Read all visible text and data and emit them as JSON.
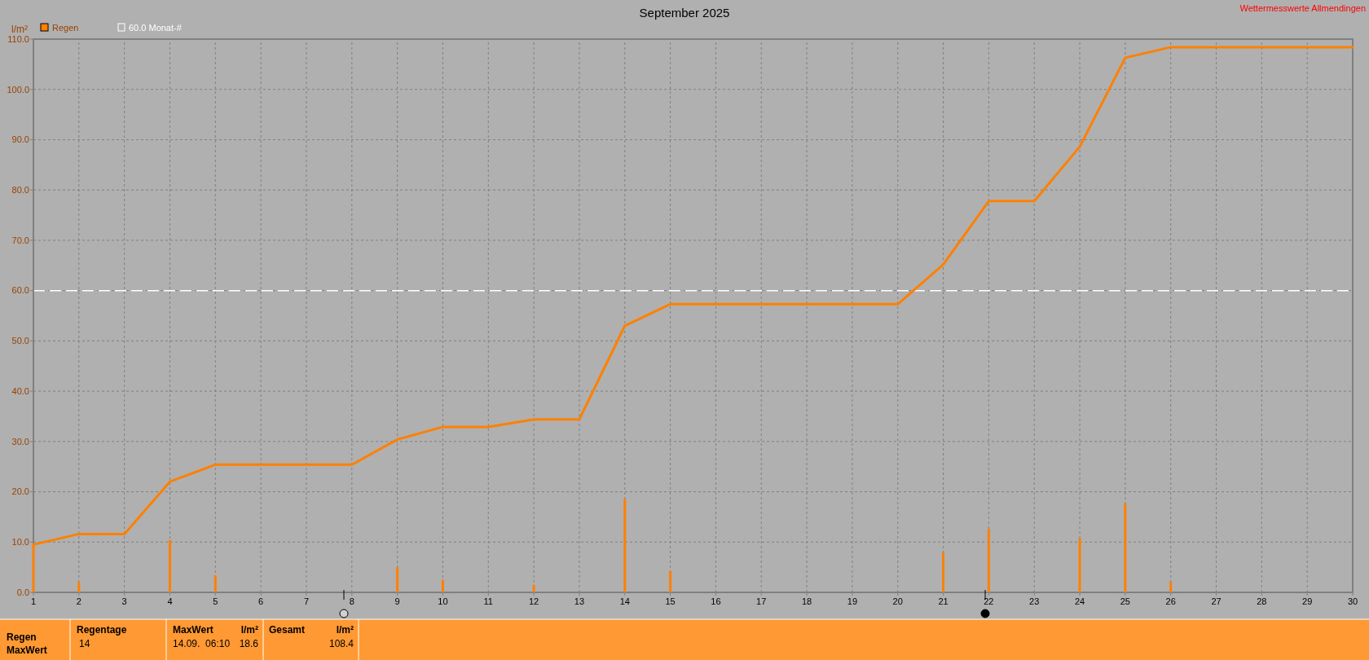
{
  "chart_data": {
    "type": "bar",
    "title": "September 2025",
    "ylabel": "l/m²",
    "x": [
      1,
      2,
      3,
      4,
      5,
      6,
      7,
      8,
      9,
      10,
      11,
      12,
      13,
      14,
      15,
      16,
      17,
      18,
      19,
      20,
      21,
      22,
      23,
      24,
      25,
      26,
      27,
      28,
      29,
      30
    ],
    "series": [
      {
        "name": "Regen",
        "color": "#ff8000",
        "values": [
          9.5,
          2.1,
          0,
          10.4,
          3.4,
          0,
          0,
          0,
          5.0,
          2.5,
          0,
          1.5,
          0,
          18.6,
          4.3,
          0,
          0,
          0,
          0,
          0,
          7.9,
          12.6,
          0,
          10.8,
          17.7,
          2.1,
          0,
          0,
          0,
          0
        ]
      },
      {
        "type": "line",
        "color": "#ff8000",
        "values": [
          9.5,
          11.6,
          11.6,
          22.0,
          25.4,
          25.4,
          25.4,
          25.4,
          30.4,
          32.9,
          32.9,
          34.4,
          34.4,
          53.0,
          57.3,
          57.3,
          57.3,
          57.3,
          57.3,
          57.3,
          65.2,
          77.8,
          77.8,
          88.6,
          106.3,
          108.4,
          108.4,
          108.4,
          108.4,
          108.4
        ]
      }
    ],
    "xlim": [
      1,
      30
    ],
    "xticks": [
      1,
      2,
      3,
      4,
      5,
      6,
      7,
      8,
      9,
      10,
      11,
      12,
      13,
      14,
      15,
      16,
      17,
      18,
      19,
      20,
      21,
      22,
      23,
      24,
      25,
      26,
      27,
      28,
      29,
      30
    ],
    "ylim": [
      0,
      110
    ],
    "yticks": [
      {
        "value": 0,
        "label": "0.0"
      },
      {
        "value": 10,
        "label": "10.0"
      },
      {
        "value": 20,
        "label": "20.0"
      },
      {
        "value": 30,
        "label": "30.0"
      },
      {
        "value": 40,
        "label": "40.0"
      },
      {
        "value": 50,
        "label": "50.0"
      },
      {
        "value": 60,
        "label": "60.0"
      },
      {
        "value": 70,
        "label": "70.0"
      },
      {
        "value": 80,
        "label": "80.0"
      },
      {
        "value": 90,
        "label": "90.0"
      },
      {
        "value": 100,
        "label": "100.0"
      },
      {
        "value": 110,
        "label": "110.0"
      }
    ],
    "ref_lines": [
      {
        "axis": "y",
        "value": 60,
        "label": "60.0 Monat-#",
        "color": "#ffffff",
        "line_style": "dashed"
      }
    ],
    "grid": true,
    "legend": "top left",
    "annotations": [
      "Wettermesswerte Allmendingen",
      "Regen",
      "MaxWert",
      "Regentage",
      "14",
      "MaxWert",
      "l/m²",
      "14.09.  06:10",
      "18.6",
      "Gesamt",
      "l/m²",
      "108.4"
    ]
  }
}
